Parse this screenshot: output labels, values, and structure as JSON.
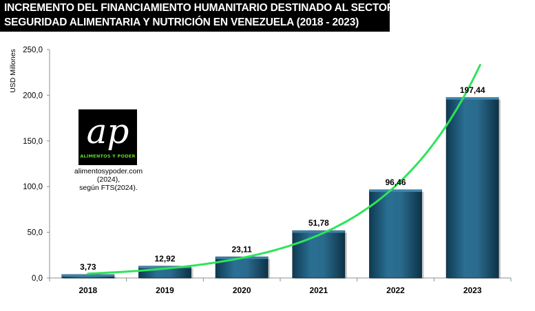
{
  "title": {
    "line1": "INCREMENTO DEL FINANCIAMIENTO HUMANITARIO DESTINADO AL SECTOR",
    "line2": "SEGURIDAD ALIMENTARIA Y NUTRICIÓN EN VENEZUELA (2018 - 2023)"
  },
  "logo": {
    "mark": "ap",
    "subtitle": "ALIMENTOS Y PODER"
  },
  "source": {
    "line1": "alimentosypoder.com (2024),",
    "line2": "según FTS(2024)."
  },
  "colors": {
    "bar": "#215d7d",
    "trend": "#2ee35a",
    "title_bg": "#000000"
  },
  "chart_data": {
    "type": "bar",
    "title": "INCREMENTO DEL FINANCIAMIENTO HUMANITARIO DESTINADO AL SECTOR SEGURIDAD ALIMENTARIA Y NUTRICIÓN EN VENEZUELA (2018 - 2023)",
    "xlabel": "",
    "ylabel": "USD Millones",
    "ylim": [
      0,
      250
    ],
    "yticks": [
      "0,0",
      "50,0",
      "100,0",
      "150,0",
      "200,0",
      "250,0"
    ],
    "ytick_values": [
      0,
      50,
      100,
      150,
      200,
      250
    ],
    "categories": [
      "2018",
      "2019",
      "2020",
      "2021",
      "2022",
      "2023"
    ],
    "values": [
      3.73,
      12.92,
      23.11,
      51.78,
      96.46,
      197.44
    ],
    "labels": [
      "3,73",
      "12,92",
      "23,11",
      "51,78",
      "96,46",
      "197,44"
    ],
    "trendline": "exponential",
    "grid": false,
    "legend": "none"
  }
}
